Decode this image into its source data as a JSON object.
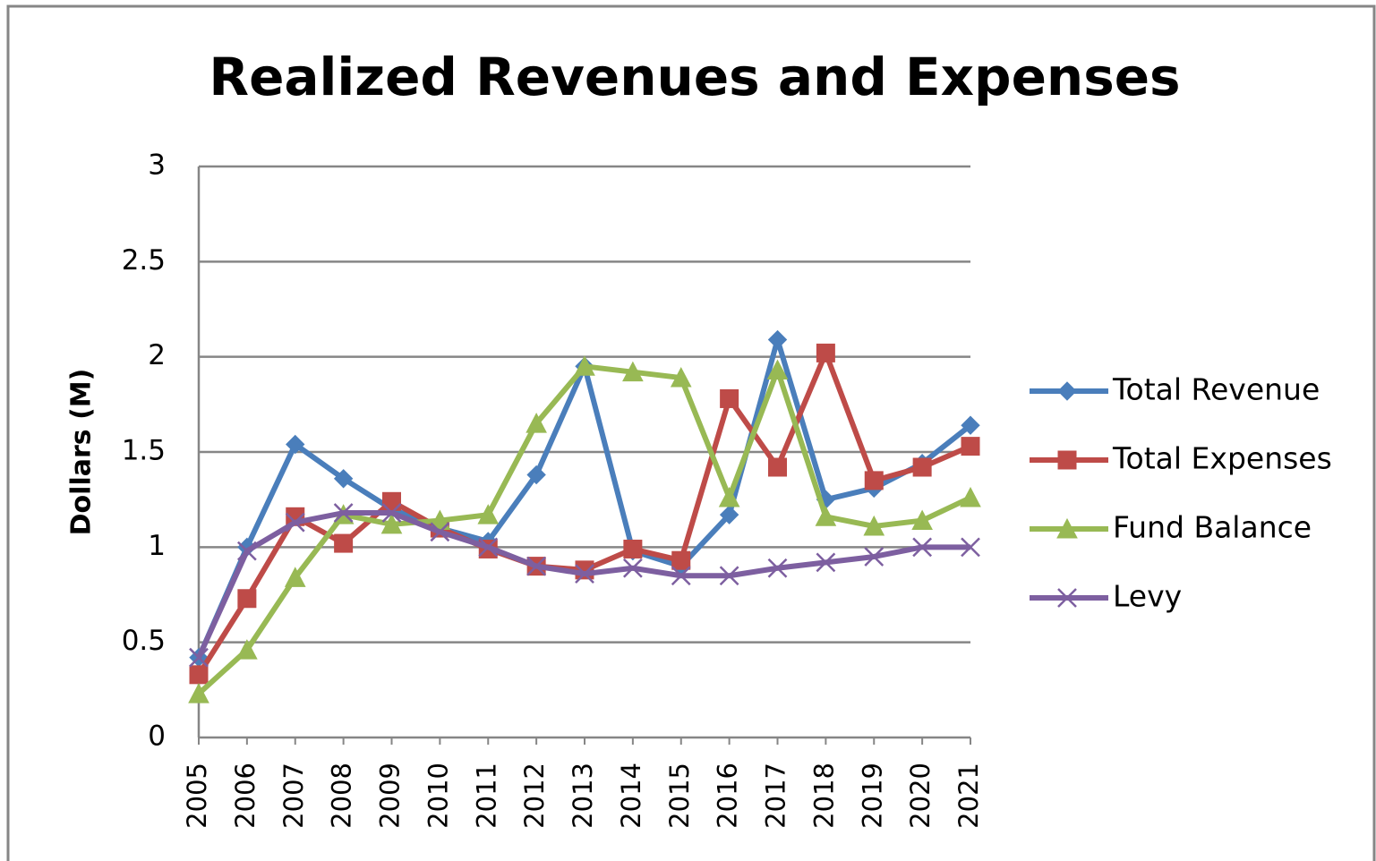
{
  "chart_data": {
    "type": "line",
    "title": "Realized Revenues and Expenses",
    "y_label": "Dollars (M)",
    "categories": [
      "2005",
      "2006",
      "2007",
      "2008",
      "2009",
      "2010",
      "2011",
      "2012",
      "2013",
      "2014",
      "2015",
      "2016",
      "2017",
      "2018",
      "2019",
      "2020",
      "2021"
    ],
    "series": [
      {
        "name": "Total Revenue",
        "color": "#4a7ebb",
        "marker": "diamond",
        "values": [
          0.42,
          1.0,
          1.54,
          1.36,
          1.2,
          1.1,
          1.03,
          1.38,
          1.95,
          0.98,
          0.9,
          1.17,
          2.09,
          1.25,
          1.31,
          1.44,
          1.64
        ]
      },
      {
        "name": "Total Expenses",
        "color": "#be4b48",
        "marker": "square",
        "values": [
          0.33,
          0.73,
          1.16,
          1.02,
          1.24,
          1.1,
          0.99,
          0.9,
          0.88,
          0.99,
          0.93,
          1.78,
          1.42,
          2.02,
          1.35,
          1.42,
          1.53
        ]
      },
      {
        "name": "Fund Balance",
        "color": "#98b954",
        "marker": "triangle",
        "values": [
          0.23,
          0.46,
          0.84,
          1.17,
          1.12,
          1.14,
          1.17,
          1.65,
          1.95,
          1.92,
          1.89,
          1.26,
          1.93,
          1.16,
          1.11,
          1.14,
          1.26
        ]
      },
      {
        "name": "Levy",
        "color": "#7d5fa0",
        "marker": "x",
        "values": [
          0.42,
          0.98,
          1.13,
          1.18,
          1.18,
          1.08,
          1.0,
          0.9,
          0.86,
          0.89,
          0.85,
          0.85,
          0.89,
          0.92,
          0.95,
          1.0,
          1.0
        ]
      }
    ],
    "ylim": [
      0,
      3
    ],
    "yticks": [
      0,
      0.5,
      1,
      1.5,
      2,
      2.5,
      3
    ],
    "grid": true,
    "legend": "right"
  }
}
